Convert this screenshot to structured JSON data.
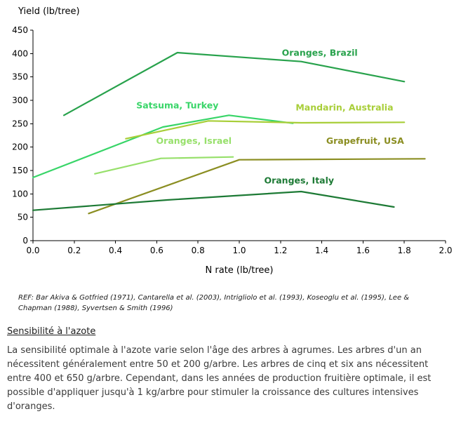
{
  "chart_data": {
    "type": "line",
    "title": "Yield (lb/tree)",
    "xlabel": "N rate (lb/tree)",
    "xlim": [
      0.0,
      2.0
    ],
    "ylim": [
      0,
      450
    ],
    "xticks": [
      0.0,
      0.2,
      0.4,
      0.6,
      0.8,
      1.0,
      1.2,
      1.4,
      1.6,
      1.8,
      2.0
    ],
    "yticks": [
      0,
      50,
      100,
      150,
      200,
      250,
      300,
      350,
      400,
      450
    ],
    "grid": false,
    "legend_position": "inline-labels",
    "series": [
      {
        "name": "Oranges, Brazil",
        "color": "#28a24c",
        "points": [
          [
            0.15,
            268
          ],
          [
            0.7,
            402
          ],
          [
            1.3,
            383
          ],
          [
            1.8,
            340
          ]
        ],
        "label_pos": [
          1.39,
          395
        ]
      },
      {
        "name": "Satsuma, Turkey",
        "color": "#38d568",
        "points": [
          [
            0.0,
            135
          ],
          [
            0.63,
            243
          ],
          [
            0.95,
            268
          ],
          [
            1.26,
            251
          ]
        ],
        "label_pos": [
          0.7,
          283
        ]
      },
      {
        "name": "Mandarin, Australia",
        "color": "#a8ce38",
        "points": [
          [
            0.45,
            218
          ],
          [
            0.85,
            256
          ],
          [
            1.3,
            252
          ],
          [
            1.8,
            253
          ]
        ],
        "label_pos": [
          1.51,
          278
        ]
      },
      {
        "name": "Oranges, Israel",
        "color": "#97e06b",
        "points": [
          [
            0.3,
            143
          ],
          [
            0.62,
            176
          ],
          [
            0.97,
            179
          ]
        ],
        "label_pos": [
          0.78,
          207
        ]
      },
      {
        "name": "Grapefruit, USA",
        "color": "#8b8e22",
        "points": [
          [
            0.27,
            58
          ],
          [
            1.0,
            173
          ],
          [
            1.9,
            175
          ]
        ],
        "label_pos": [
          1.61,
          207
        ]
      },
      {
        "name": "Oranges, Italy",
        "color": "#1d7a35",
        "points": [
          [
            0.0,
            65
          ],
          [
            0.65,
            87
          ],
          [
            1.3,
            105
          ],
          [
            1.75,
            72
          ]
        ],
        "label_pos": [
          1.29,
          122
        ]
      }
    ]
  },
  "ref_text": "REF: Bar Akiva & Gotfried (1971), Cantarella et al. (2003), Intrigliolo et al. (1993), Koseoglu et al. (1995), Lee & Chapman (1988), Syvertsen & Smith (1996)",
  "section": {
    "heading": "Sensibilité à l'azote",
    "body": "La sensibilité optimale à l'azote varie selon l'âge des arbres à agrumes. Les arbres d'un an nécessitent généralement entre 50 et 200 g/arbre. Les arbres de cinq et six ans nécessitent entre 400 et 650 g/arbre. Cependant, dans les années de production fruitière optimale, il est possible d'appliquer jusqu'à 1 kg/arbre pour stimuler la croissance des cultures intensives d'oranges."
  }
}
